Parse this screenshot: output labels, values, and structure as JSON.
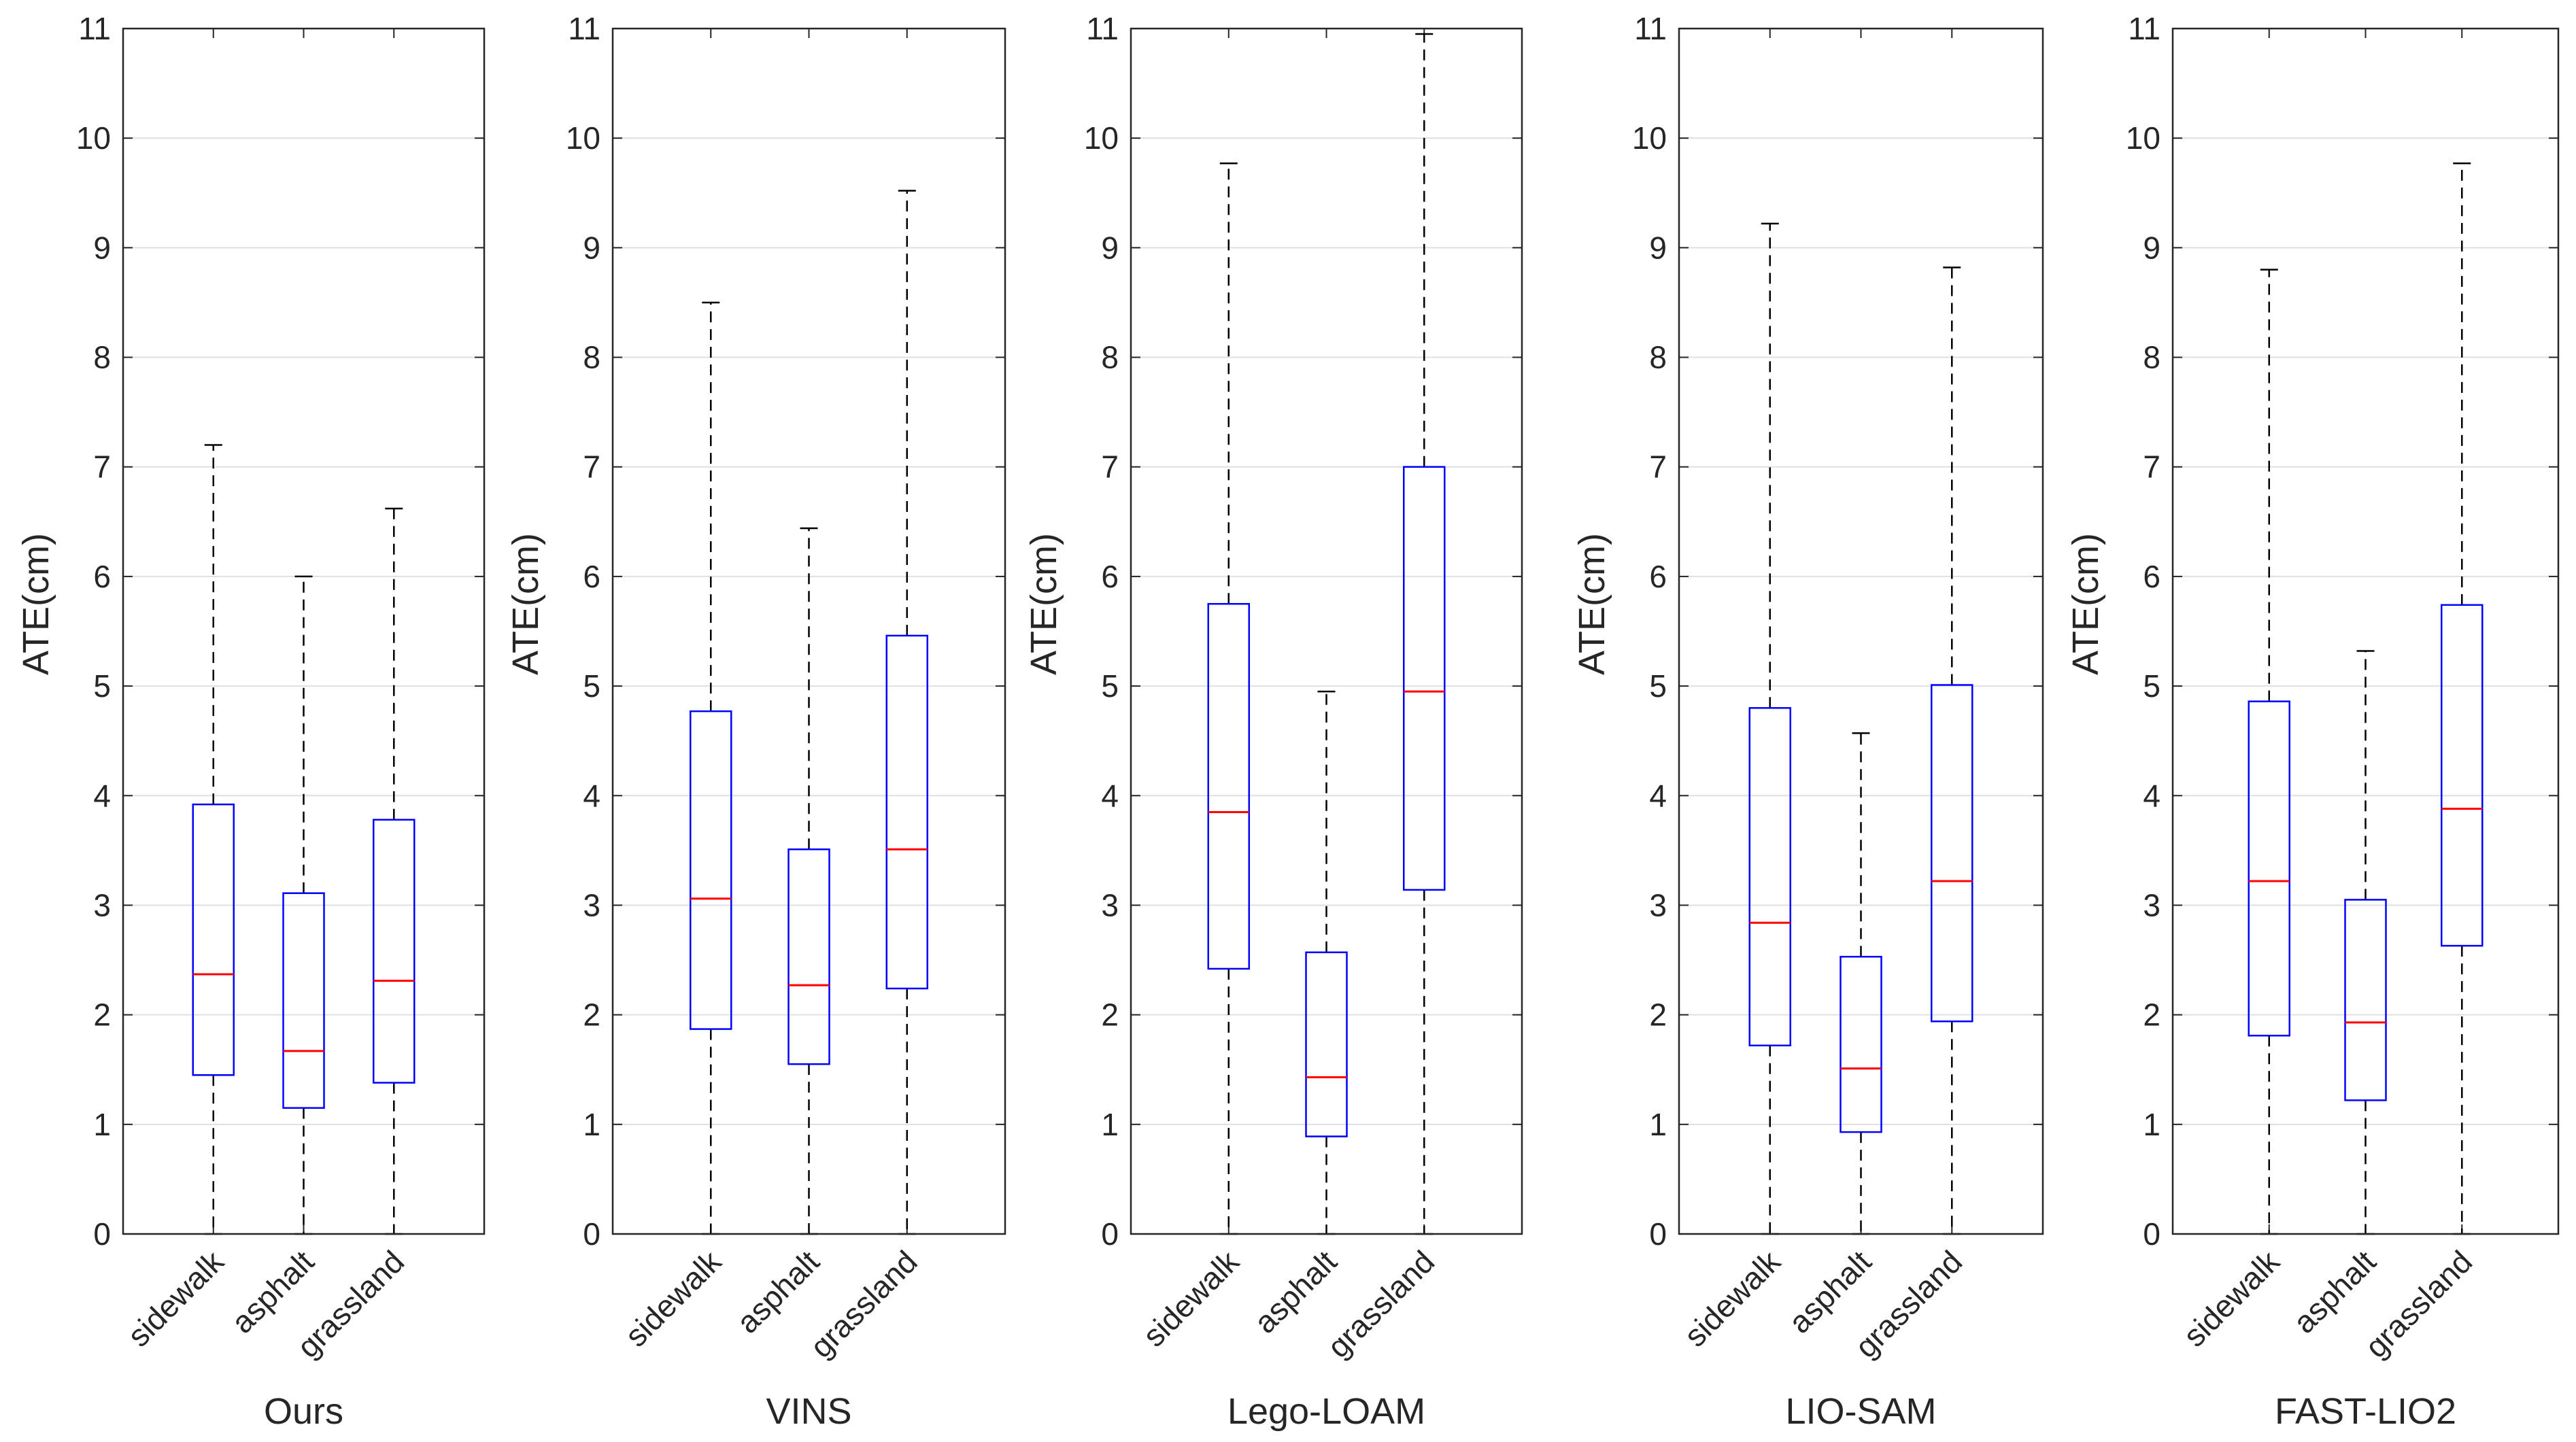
{
  "chart_data": [
    {
      "type": "box",
      "xlabel": "Ours",
      "ylabel": "ATE(cm)",
      "ylim": [
        0,
        11
      ],
      "yticks": [
        0,
        1,
        2,
        3,
        4,
        5,
        6,
        7,
        8,
        9,
        10,
        11
      ],
      "grid": "horizontal",
      "categories": [
        "sidewalk",
        "asphalt",
        "grassland"
      ],
      "boxes": [
        {
          "min": 0,
          "q1": 1.45,
          "median": 2.37,
          "q3": 3.92,
          "max": 7.2
        },
        {
          "min": 0,
          "q1": 1.15,
          "median": 1.67,
          "q3": 3.11,
          "max": 6.0
        },
        {
          "min": 0,
          "q1": 1.38,
          "median": 2.31,
          "q3": 3.78,
          "max": 6.62
        }
      ]
    },
    {
      "type": "box",
      "xlabel": "VINS",
      "ylabel": "ATE(cm)",
      "ylim": [
        0,
        11
      ],
      "yticks": [
        0,
        1,
        2,
        3,
        4,
        5,
        6,
        7,
        8,
        9,
        10,
        11
      ],
      "grid": "horizontal",
      "categories": [
        "sidewalk",
        "asphalt",
        "grassland"
      ],
      "boxes": [
        {
          "min": 0,
          "q1": 1.87,
          "median": 3.06,
          "q3": 4.77,
          "max": 8.5
        },
        {
          "min": 0,
          "q1": 1.55,
          "median": 2.27,
          "q3": 3.51,
          "max": 6.44
        },
        {
          "min": 0,
          "q1": 2.24,
          "median": 3.51,
          "q3": 5.46,
          "max": 9.52
        }
      ]
    },
    {
      "type": "box",
      "xlabel": "Lego-LOAM",
      "ylabel": "ATE(cm)",
      "ylim": [
        0,
        11
      ],
      "yticks": [
        0,
        1,
        2,
        3,
        4,
        5,
        6,
        7,
        8,
        9,
        10,
        11
      ],
      "grid": "horizontal",
      "categories": [
        "sidewalk",
        "asphalt",
        "grassland"
      ],
      "boxes": [
        {
          "min": 0,
          "q1": 2.42,
          "median": 3.85,
          "q3": 5.75,
          "max": 9.77
        },
        {
          "min": 0,
          "q1": 0.89,
          "median": 1.43,
          "q3": 2.57,
          "max": 4.95
        },
        {
          "min": 0,
          "q1": 3.14,
          "median": 4.95,
          "q3": 7.0,
          "max": 10.95
        }
      ]
    },
    {
      "type": "box",
      "xlabel": "LIO-SAM",
      "ylabel": "ATE(cm)",
      "ylim": [
        0,
        11
      ],
      "yticks": [
        0,
        1,
        2,
        3,
        4,
        5,
        6,
        7,
        8,
        9,
        10,
        11
      ],
      "grid": "horizontal",
      "categories": [
        "sidewalk",
        "asphalt",
        "grassland"
      ],
      "boxes": [
        {
          "min": 0,
          "q1": 1.72,
          "median": 2.84,
          "q3": 4.8,
          "max": 9.22
        },
        {
          "min": 0,
          "q1": 0.93,
          "median": 1.51,
          "q3": 2.53,
          "max": 4.57
        },
        {
          "min": 0,
          "q1": 1.94,
          "median": 3.22,
          "q3": 5.01,
          "max": 8.82
        }
      ]
    },
    {
      "type": "box",
      "xlabel": "FAST-LIO2",
      "ylabel": "ATE(cm)",
      "ylim": [
        0,
        11
      ],
      "yticks": [
        0,
        1,
        2,
        3,
        4,
        5,
        6,
        7,
        8,
        9,
        10,
        11
      ],
      "grid": "horizontal",
      "categories": [
        "sidewalk",
        "asphalt",
        "grassland"
      ],
      "boxes": [
        {
          "min": 0,
          "q1": 1.81,
          "median": 3.22,
          "q3": 4.86,
          "max": 8.8
        },
        {
          "min": 0,
          "q1": 1.22,
          "median": 1.93,
          "q3": 3.05,
          "max": 5.32
        },
        {
          "min": 0,
          "q1": 2.63,
          "median": 3.88,
          "q3": 5.74,
          "max": 9.77
        }
      ]
    }
  ],
  "colors": {
    "box_edge": "#0000ff",
    "median": "#ff0000",
    "whisker": "#000000",
    "grid": "#e0e0e0",
    "axis": "#262626"
  }
}
